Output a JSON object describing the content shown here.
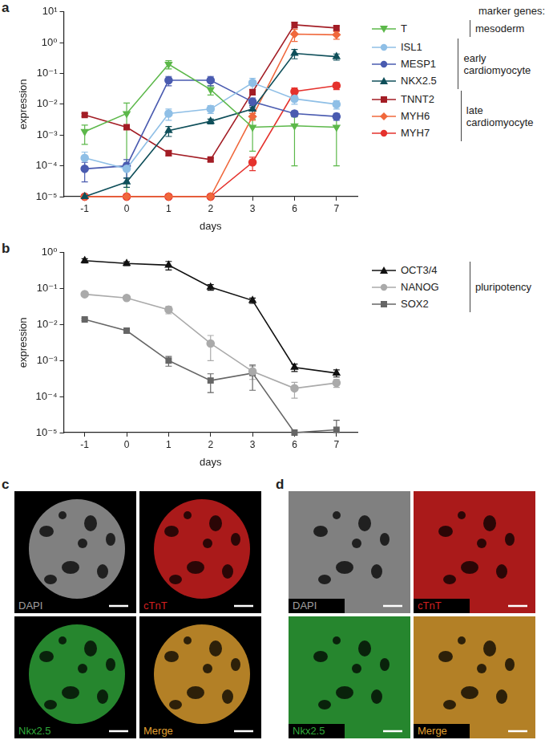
{
  "chart_data": [
    {
      "panel": "a",
      "type": "line",
      "x_label": "days",
      "y_label": "expression",
      "legend_title": "marker genes:",
      "legend": "right",
      "log": "y",
      "grid": false,
      "categories": [
        "-1",
        "0",
        "1",
        "2",
        "3",
        "6",
        "7"
      ],
      "ylim": [
        1e-05,
        10
      ],
      "yticks": [
        {
          "value": 1e-05,
          "label": "10⁻⁵"
        },
        {
          "value": 0.0001,
          "label": "10⁻⁴"
        },
        {
          "value": 0.001,
          "label": "10⁻³"
        },
        {
          "value": 0.01,
          "label": "10⁻²"
        },
        {
          "value": 0.1,
          "label": "10⁻¹"
        },
        {
          "value": 1,
          "label": "10⁰"
        },
        {
          "value": 10,
          "label": "10¹"
        }
      ],
      "series": [
        {
          "name": "T",
          "color": "#5cb84a",
          "marker": "triangle-down",
          "line_style": "solid",
          "values": [
            0.0013,
            0.005,
            0.2,
            0.03,
            0.0018,
            0.002,
            0.0018
          ],
          "errors": [
            0.0008,
            0.006,
            0.06,
            0.01,
            0.0015,
            0.0019,
            0.0017
          ]
        },
        {
          "name": "ISL1",
          "color": "#8fbfe6",
          "marker": "circle",
          "line_style": "solid",
          "values": [
            0.00018,
            8e-05,
            0.005,
            0.007,
            0.05,
            0.015,
            0.01
          ],
          "errors": [
            0.0001,
            5e-05,
            0.002,
            0.002,
            0.02,
            0.005,
            0.003
          ]
        },
        {
          "name": "MESP1",
          "color": "#4a5bb0",
          "marker": "circle",
          "line_style": "solid",
          "values": [
            8e-05,
            0.0001,
            0.06,
            0.06,
            0.012,
            0.005,
            0.004
          ],
          "errors": [
            5e-05,
            6e-05,
            0.02,
            0.02,
            0.004,
            0.001,
            0.001
          ]
        },
        {
          "name": "NKX2.5",
          "color": "#0f4f5a",
          "marker": "triangle",
          "line_style": "solid",
          "values": [
            1e-05,
            3e-05,
            0.0014,
            0.0028,
            0.007,
            0.45,
            0.35
          ],
          "errors": [
            0,
            1e-05,
            0.0005,
            0.0005,
            0.002,
            0.15,
            0.08
          ]
        },
        {
          "name": "TNNT2",
          "color": "#a31d25",
          "marker": "square",
          "line_style": "solid",
          "values": [
            0.0045,
            0.0018,
            0.00026,
            0.00016,
            0.025,
            3.8,
            3.0
          ],
          "errors": [
            0.0005,
            0.0003,
            5e-05,
            2e-05,
            0.005,
            0.8,
            0.5
          ]
        },
        {
          "name": "MYH6",
          "color": "#f0683c",
          "marker": "diamond",
          "line_style": "solid",
          "values": [
            1e-05,
            1e-05,
            1e-05,
            1e-05,
            0.004,
            1.9,
            1.8
          ],
          "errors": [
            0,
            0,
            0,
            0,
            0.001,
            0.8,
            0.5
          ]
        },
        {
          "name": "MYH7",
          "color": "#e5322d",
          "marker": "circle",
          "line_style": "solid",
          "values": [
            1e-05,
            1e-05,
            1e-05,
            1e-05,
            0.00013,
            0.026,
            0.04
          ],
          "errors": [
            0,
            0,
            0,
            0,
            6e-05,
            0.008,
            0.01
          ]
        }
      ],
      "groups": [
        {
          "label": "mesoderm",
          "members": [
            "T"
          ]
        },
        {
          "label": "early cardiomyocyte",
          "members": [
            "ISL1",
            "MESP1",
            "NKX2.5"
          ]
        },
        {
          "label": "late cardiomyocyte",
          "members": [
            "TNNT2",
            "MYH6",
            "MYH7"
          ]
        }
      ]
    },
    {
      "panel": "b",
      "type": "line",
      "x_label": "days",
      "y_label": "expression",
      "legend": "right",
      "log": "y",
      "grid": false,
      "categories": [
        "-1",
        "0",
        "1",
        "2",
        "3",
        "6",
        "7"
      ],
      "ylim": [
        1e-05,
        1
      ],
      "yticks": [
        {
          "value": 1e-05,
          "label": "10⁻⁵"
        },
        {
          "value": 0.0001,
          "label": "10⁻⁴"
        },
        {
          "value": 0.001,
          "label": "10⁻³"
        },
        {
          "value": 0.01,
          "label": "10⁻²"
        },
        {
          "value": 0.1,
          "label": "10⁻¹"
        },
        {
          "value": 1,
          "label": "10⁰"
        }
      ],
      "series": [
        {
          "name": "OCT3/4",
          "color": "#111111",
          "marker": "triangle",
          "line_style": "solid",
          "values": [
            0.6,
            0.5,
            0.45,
            0.11,
            0.047,
            0.00065,
            0.00045
          ],
          "errors": [
            0.08,
            0.06,
            0.12,
            0.02,
            0.008,
            0.00015,
            0.0001
          ]
        },
        {
          "name": "NANOG",
          "color": "#aaaaaa",
          "marker": "circle",
          "line_style": "solid",
          "values": [
            0.07,
            0.055,
            0.026,
            0.003,
            0.0005,
            0.00017,
            0.00024
          ],
          "errors": [
            0.005,
            0.004,
            0.006,
            0.002,
            0.0002,
            8e-05,
            6e-05
          ]
        },
        {
          "name": "SOX2",
          "color": "#666666",
          "marker": "square",
          "line_style": "solid",
          "values": [
            0.014,
            0.0068,
            0.001,
            0.00028,
            0.00045,
            1e-05,
            1.2e-05
          ],
          "errors": [
            0.001,
            0.0006,
            0.0003,
            0.00015,
            0.0003,
            0,
            1e-05
          ]
        }
      ],
      "groups": [
        {
          "label": "pluripotency",
          "members": [
            "OCT3/4",
            "NANOG",
            "SOX2"
          ]
        }
      ]
    }
  ],
  "image_panels": [
    {
      "panel": "c",
      "images": [
        {
          "label": "DAPI",
          "color": "#a0a0a0"
        },
        {
          "label": "cTnT",
          "color": "#d42020"
        },
        {
          "label": "Nkx2.5",
          "color": "#2fa83a"
        },
        {
          "label": "Merge",
          "color": "#e0a030"
        }
      ]
    },
    {
      "panel": "d",
      "images": [
        {
          "label": "DAPI",
          "color": "#a0a0a0"
        },
        {
          "label": "cTnT",
          "color": "#d42020"
        },
        {
          "label": "Nkx2.5",
          "color": "#2fa83a"
        },
        {
          "label": "Merge",
          "color": "#e0a030"
        }
      ]
    }
  ]
}
